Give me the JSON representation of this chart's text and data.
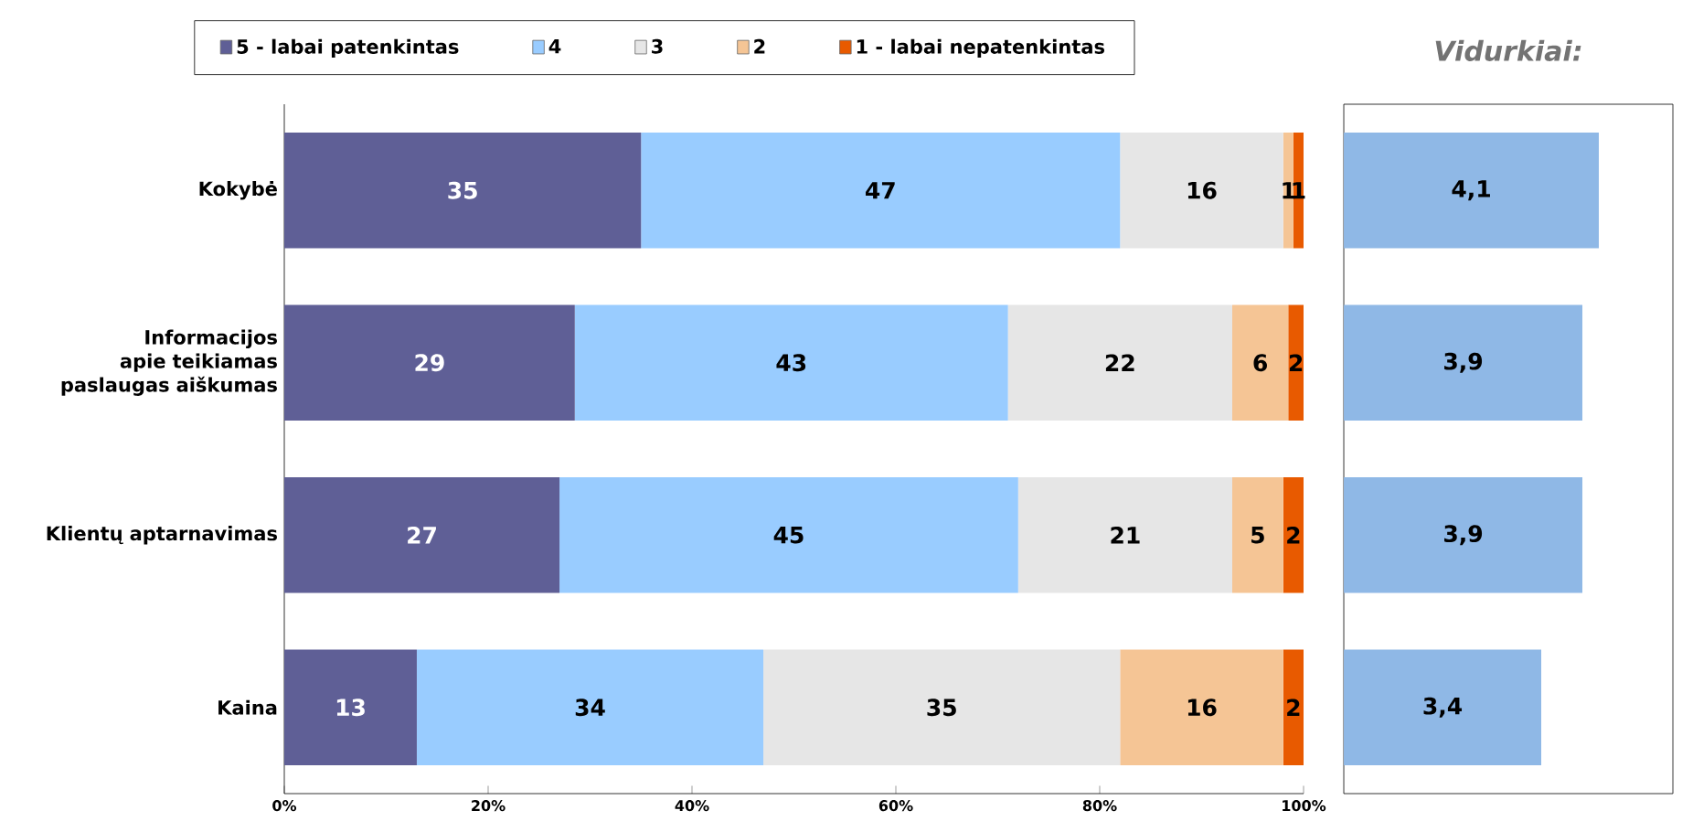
{
  "chart_data": [
    {
      "type": "bar",
      "orientation": "horizontal",
      "stacked": true,
      "legend": "top",
      "categories": [
        "Kokybė",
        "Informacijos apie teikiamas paslaugas aiškumas",
        "Klientų aptarnavimas",
        "Kaina"
      ],
      "series": [
        {
          "name": "5 - labai patenkintas",
          "color": "#5f5f96",
          "values": [
            35,
            28.5,
            27,
            13
          ],
          "value_labels": [
            "35",
            "29",
            "27",
            "13"
          ]
        },
        {
          "name": "4",
          "color": "#99ccff",
          "values": [
            47,
            42.5,
            45,
            34
          ],
          "value_labels": [
            "47",
            "43",
            "45",
            "34"
          ]
        },
        {
          "name": "3",
          "color": "#e6e6e6",
          "values": [
            16,
            22,
            21,
            35
          ],
          "value_labels": [
            "16",
            "22",
            "21",
            "35"
          ]
        },
        {
          "name": "2",
          "color": "#f5c595",
          "values": [
            1,
            5.5,
            5,
            16
          ],
          "value_labels": [
            "1",
            "6",
            "5",
            "16"
          ]
        },
        {
          "name": "1 - labai nepatenkintas",
          "color": "#e85a00",
          "values": [
            1,
            1.5,
            2,
            2
          ],
          "value_labels": [
            "1",
            "2",
            "2",
            "2"
          ]
        }
      ],
      "xlim": [
        0,
        100
      ],
      "xticks": [
        {
          "value": 0,
          "label": "0%"
        },
        {
          "value": 20,
          "label": "20%"
        },
        {
          "value": 40,
          "label": "40%"
        },
        {
          "value": 60,
          "label": "60%"
        },
        {
          "value": 80,
          "label": "80%"
        },
        {
          "value": 100,
          "label": "100%"
        }
      ]
    },
    {
      "type": "bar",
      "orientation": "horizontal",
      "title": "Vidurkiai:",
      "categories": [
        null,
        null,
        null,
        null
      ],
      "values": [
        4.1,
        3.9,
        3.9,
        3.4
      ],
      "value_labels": [
        "4,1",
        "3,9",
        "3,9",
        "3,4"
      ],
      "color": "#8fb8e6",
      "xlim": [
        1,
        5
      ],
      "tick_labels": false
    }
  ]
}
